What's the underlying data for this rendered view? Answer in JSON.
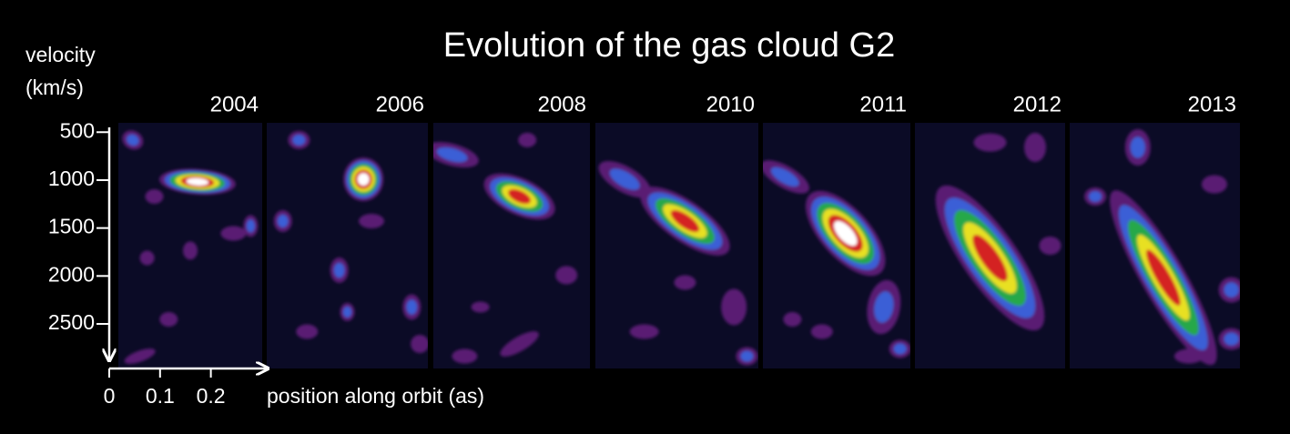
{
  "chart_data": {
    "type": "pv-panels",
    "title": "Evolution of the gas cloud G2",
    "y_label": [
      "velocity",
      "(km/s)"
    ],
    "x_label": "position along orbit (as)",
    "categories": [
      "2004",
      "2006",
      "2008",
      "2010",
      "2011",
      "2012",
      "2013"
    ],
    "ylim": [
      450,
      2870
    ],
    "yticks": [
      500,
      1000,
      1500,
      2000,
      2500
    ],
    "xlim": [
      0,
      0.31
    ],
    "xticks": [
      0,
      0.1,
      0.2
    ]
  }
}
